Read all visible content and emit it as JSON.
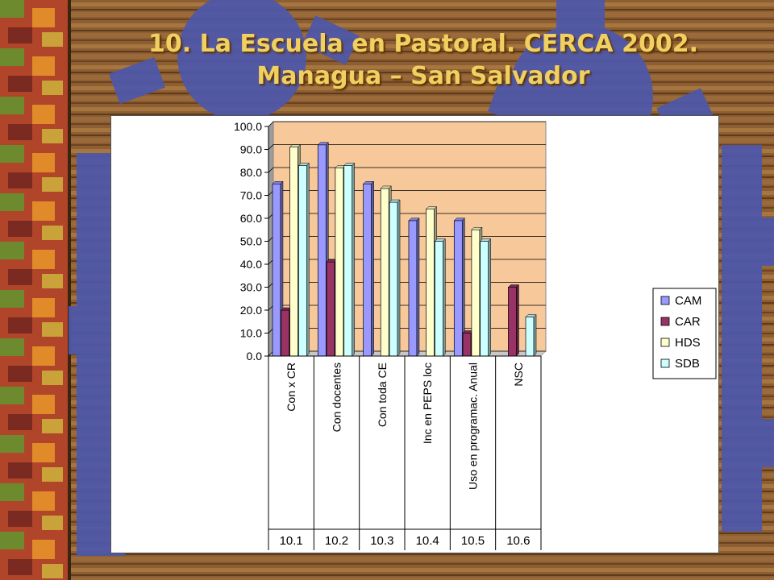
{
  "slide": {
    "title_line1": "10. La Escuela en Pastoral. CERCA 2002.",
    "title_line2": "Managua – San Salvador"
  },
  "colors": {
    "wood_light": "#9A6A3A",
    "wood_dark": "#5E3A1C",
    "gear_blue": "#4E58A8",
    "plot_bg": "#F7C89A",
    "title_gold": "#F0D060"
  },
  "chart_data": {
    "type": "bar",
    "title": "",
    "xlabel": "",
    "ylabel": "",
    "ylim": [
      0,
      100
    ],
    "yticks": [
      "0.0",
      "10.0",
      "20.0",
      "30.0",
      "40.0",
      "50.0",
      "60.0",
      "70.0",
      "80.0",
      "90.0",
      "100.0"
    ],
    "grid": true,
    "legend_position": "right",
    "categories": [
      "Con x CR",
      "Con docentes",
      "Con toda CE",
      "Inc en PEPS loc",
      "Uso en programac. Anual",
      "NSC"
    ],
    "codes": [
      "10.1",
      "10.2",
      "10.3",
      "10.4",
      "10.5",
      "10.6"
    ],
    "series": [
      {
        "name": "CAM",
        "color": "#9999FF",
        "values": [
          75,
          92,
          75,
          59,
          59,
          0
        ]
      },
      {
        "name": "CAR",
        "color": "#993366",
        "values": [
          20,
          41,
          0,
          0,
          10,
          30
        ]
      },
      {
        "name": "HDS",
        "color": "#FFFFCC",
        "values": [
          91,
          82,
          73,
          64,
          55,
          0
        ]
      },
      {
        "name": "SDB",
        "color": "#CCFFFF",
        "values": [
          83,
          83,
          67,
          50,
          50,
          17
        ]
      }
    ]
  }
}
